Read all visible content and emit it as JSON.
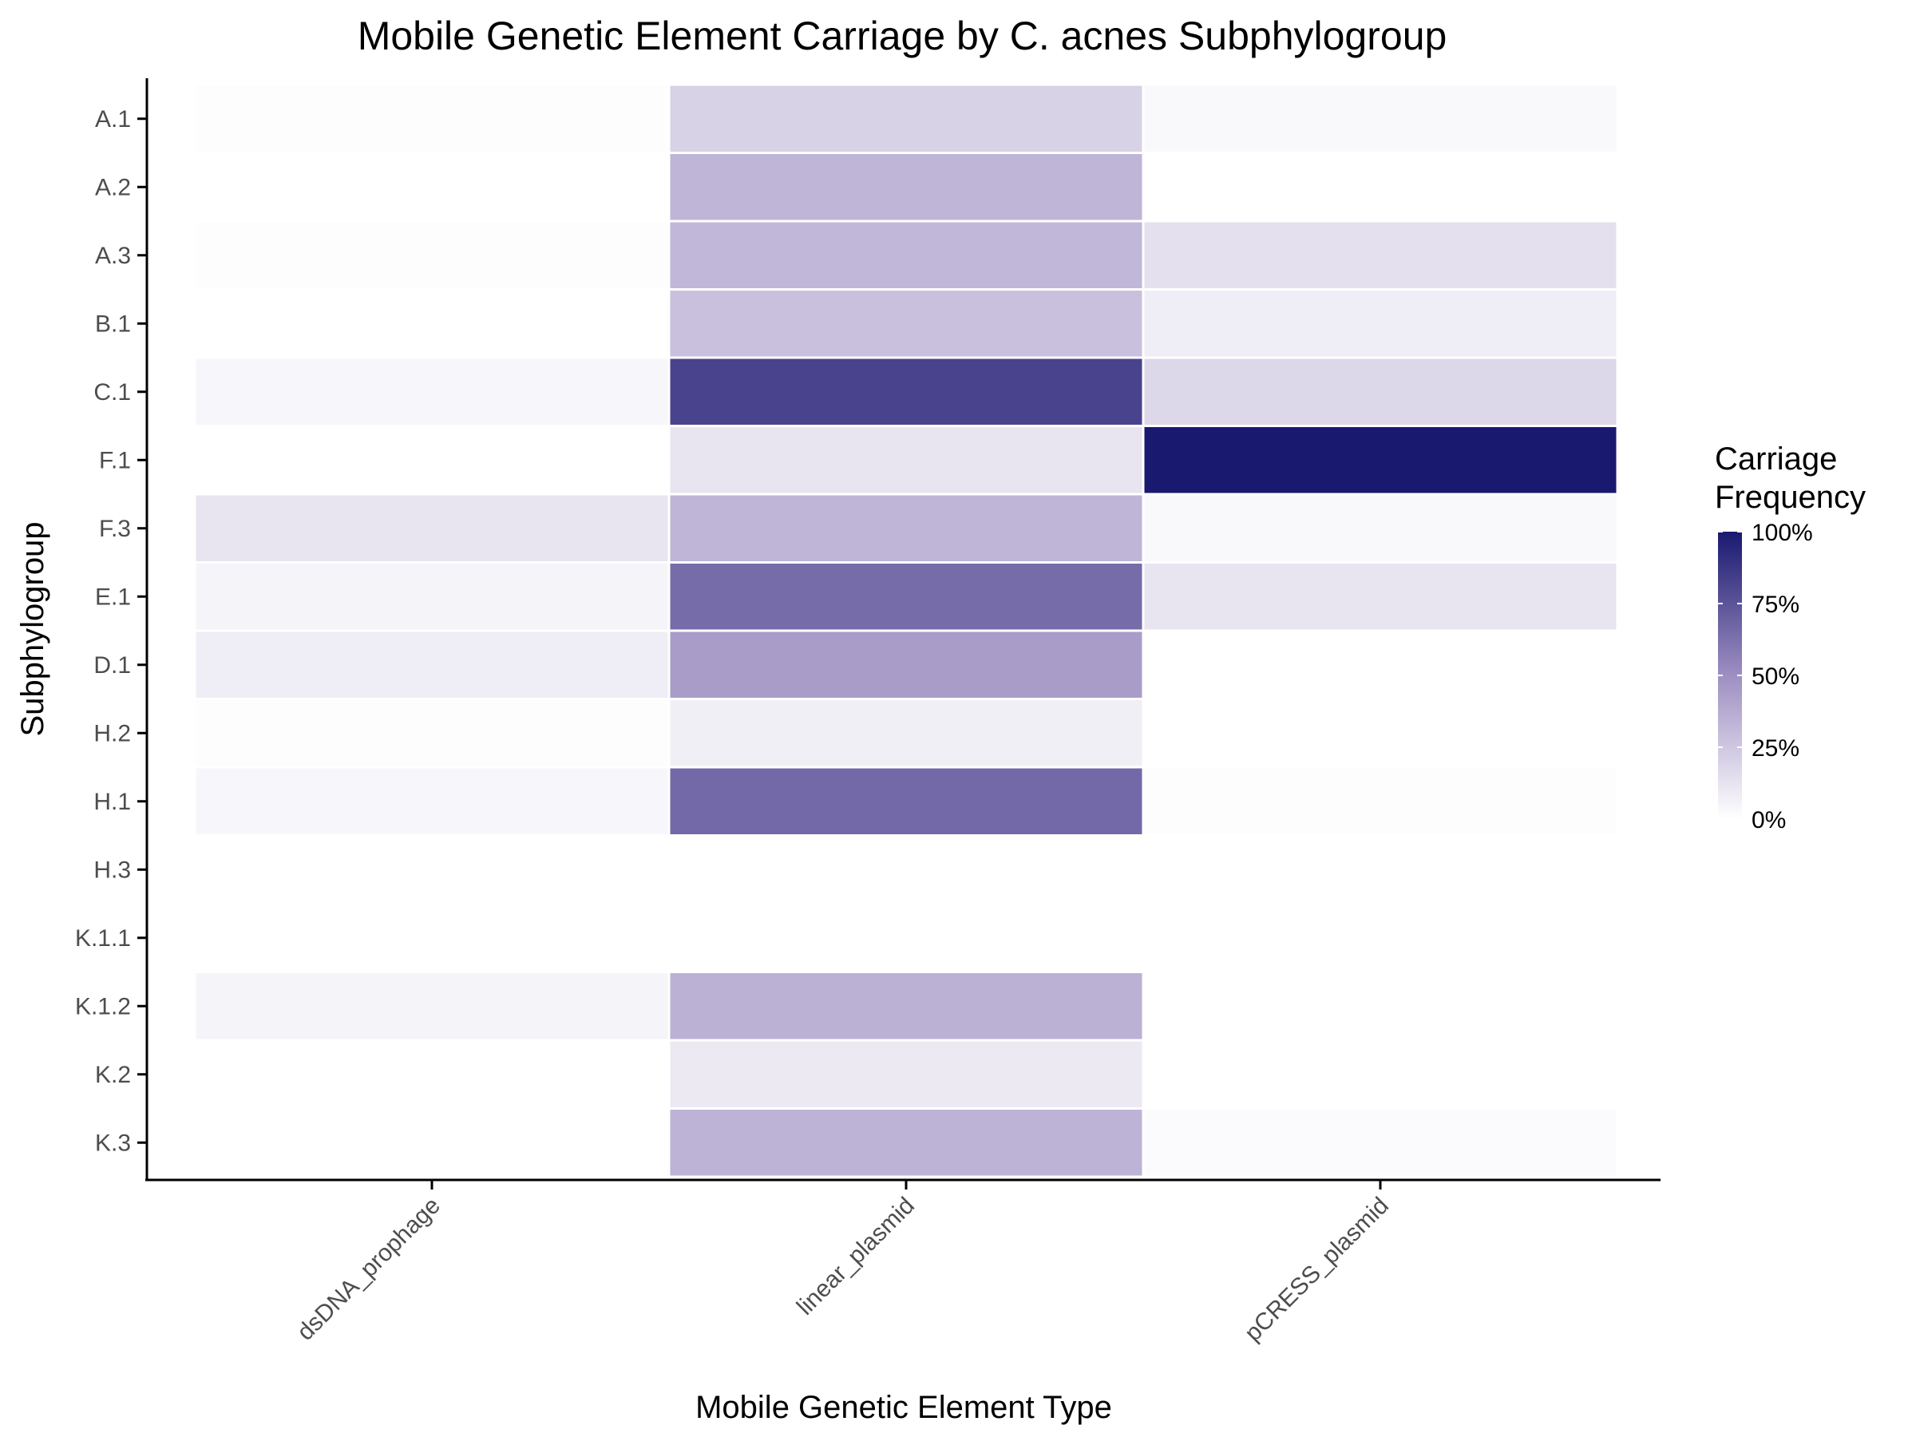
{
  "chart_data": {
    "type": "heatmap",
    "title": "Mobile Genetic Element Carriage by C. acnes Subphylogroup",
    "xlabel": "Mobile Genetic Element Type",
    "ylabel": "Subphylogroup",
    "x_categories": [
      "dsDNA_prophage",
      "linear_plasmid",
      "pCRESS_plasmid"
    ],
    "y_categories": [
      "A.1",
      "A.2",
      "A.3",
      "B.1",
      "C.1",
      "F.1",
      "F.3",
      "E.1",
      "D.1",
      "H.2",
      "H.1",
      "H.3",
      "K.1.1",
      "K.1.2",
      "K.2",
      "K.3"
    ],
    "values": [
      [
        1,
        20,
        3
      ],
      [
        0,
        33,
        0
      ],
      [
        1,
        32,
        14
      ],
      [
        0,
        28,
        8
      ],
      [
        4,
        82,
        18
      ],
      [
        0,
        12,
        100
      ],
      [
        12,
        33,
        3
      ],
      [
        5,
        65,
        12
      ],
      [
        8,
        44,
        0
      ],
      [
        1,
        7,
        0
      ],
      [
        4,
        66,
        1
      ],
      [
        0,
        0,
        0
      ],
      [
        0,
        0,
        0
      ],
      [
        5,
        35,
        0
      ],
      [
        0,
        10,
        0
      ],
      [
        0,
        34,
        2
      ]
    ],
    "value_unit": "%",
    "color_range": [
      0,
      100
    ],
    "colors": {
      "low": "#ffffff",
      "mid": "#9e8fc2",
      "high": "#191970"
    },
    "legend": {
      "title_lines": [
        "Carriage",
        "Frequency"
      ],
      "ticks": [
        "0%",
        "25%",
        "50%",
        "75%",
        "100%"
      ],
      "tick_values": [
        0,
        25,
        50,
        75,
        100
      ],
      "position": "right"
    },
    "grid": false
  }
}
